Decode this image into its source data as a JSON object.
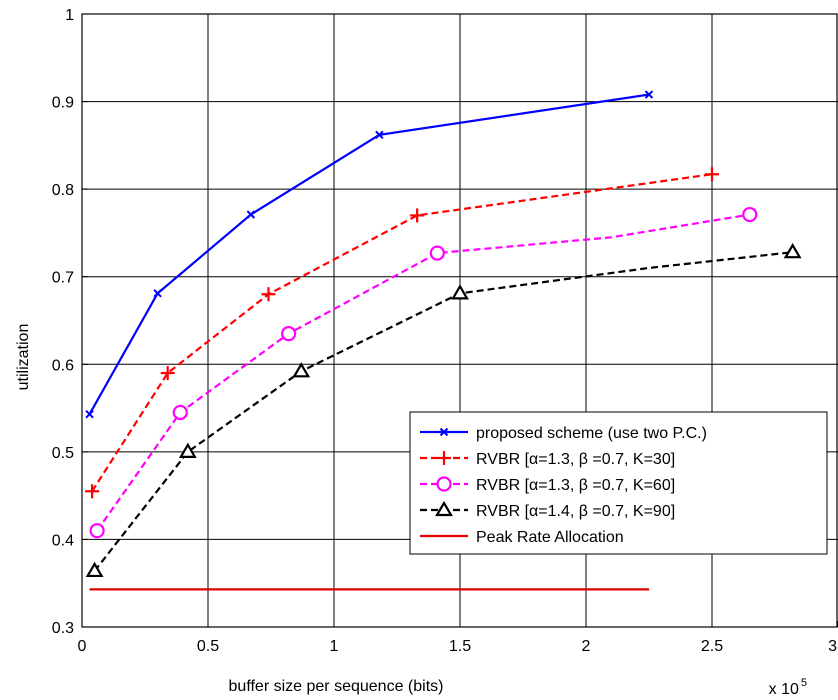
{
  "chart_data": {
    "type": "line",
    "xlabel": "buffer size per sequence (bits)",
    "ylabel": "utilization",
    "x_multiplier_label": "x 10",
    "x_multiplier_exponent": "5",
    "xlim": [
      0,
      3
    ],
    "ylim": [
      0.3,
      1
    ],
    "x_ticks": [
      "0",
      "0.5",
      "1",
      "1.5",
      "2",
      "2.5",
      "3"
    ],
    "y_ticks": [
      "0.3",
      "0.4",
      "0.5",
      "0.6",
      "0.7",
      "0.8",
      "0.9",
      "1"
    ],
    "grid": true,
    "legend_position": "bottom-right",
    "series": [
      {
        "name": "proposed scheme (use two P.C.)",
        "color": "#0000ff",
        "line_style": "solid",
        "marker": "x",
        "x": [
          0.03,
          0.3,
          0.67,
          1.18,
          2.25
        ],
        "y": [
          0.543,
          0.681,
          0.771,
          0.862,
          0.908
        ],
        "marker_x": [
          0.03,
          0.3,
          0.67,
          1.18,
          2.25
        ],
        "marker_y": [
          0.543,
          0.681,
          0.771,
          0.862,
          0.908
        ]
      },
      {
        "name": "RVBR [α=1.3,  β =0.7, K=30]",
        "color": "#ff0000",
        "line_style": "dashed",
        "marker": "plus",
        "x": [
          0.04,
          0.34,
          0.74,
          1.33,
          2.5
        ],
        "y": [
          0.455,
          0.59,
          0.68,
          0.77,
          0.817
        ],
        "marker_x": [
          0.04,
          0.34,
          0.74,
          1.33,
          2.5
        ],
        "marker_y": [
          0.455,
          0.59,
          0.68,
          0.77,
          0.817
        ]
      },
      {
        "name": "RVBR [α=1.3,  β =0.7, K=60]",
        "color": "#ff00ff",
        "line_style": "dashed",
        "marker": "circle",
        "x": [
          0.06,
          0.39,
          0.82,
          1.41,
          2.1,
          2.65
        ],
        "y": [
          0.41,
          0.545,
          0.635,
          0.727,
          0.745,
          0.771
        ],
        "marker_x": [
          0.06,
          0.39,
          0.82,
          1.41,
          2.65
        ],
        "marker_y": [
          0.41,
          0.545,
          0.635,
          0.727,
          0.771
        ]
      },
      {
        "name": "RVBR [α=1.4,  β =0.7, K=90]",
        "color": "#000000",
        "line_style": "dashed",
        "marker": "triangle",
        "x": [
          0.05,
          0.42,
          0.87,
          1.5,
          2.25,
          2.82
        ],
        "y": [
          0.364,
          0.5,
          0.592,
          0.681,
          0.71,
          0.728
        ],
        "marker_x": [
          0.05,
          0.42,
          0.87,
          1.5,
          2.82
        ],
        "marker_y": [
          0.364,
          0.5,
          0.592,
          0.681,
          0.728
        ]
      },
      {
        "name": "Peak Rate Allocation",
        "color": "#e00000",
        "line_style": "solid",
        "marker": "none",
        "x": [
          0.03,
          2.25
        ],
        "y": [
          0.343,
          0.343
        ],
        "marker_x": [],
        "marker_y": []
      }
    ]
  }
}
